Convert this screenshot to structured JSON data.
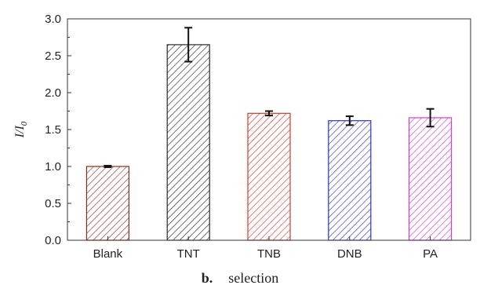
{
  "chart_data": {
    "type": "bar",
    "categories": [
      "Blank",
      "TNT",
      "TNB",
      "DNB",
      "PA"
    ],
    "values": [
      1.0,
      2.65,
      1.72,
      1.62,
      1.66
    ],
    "errors": [
      0.01,
      0.23,
      0.03,
      0.06,
      0.12
    ],
    "bar_colors": [
      "#8b2c1f",
      "#2a2a2a",
      "#d03b2b",
      "#2e33c8",
      "#d73bd0"
    ],
    "xlabel": "",
    "ylabel": {
      "main": "I",
      "sep": "/",
      "base": "I",
      "sub": "0"
    },
    "ylim": [
      0,
      3.0
    ],
    "yticks": [
      "0.0",
      "0.5",
      "1.0",
      "1.5",
      "2.0",
      "2.5",
      "3.0"
    ],
    "grid": false,
    "fill": "diagonal-hatch"
  },
  "caption": {
    "panel": "b.",
    "text": "selection"
  }
}
